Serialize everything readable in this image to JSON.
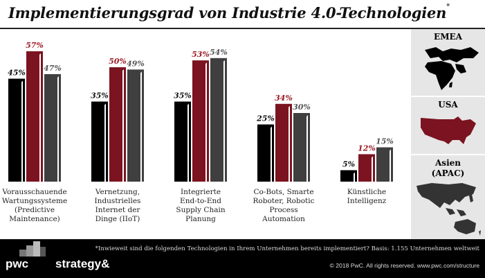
{
  "title": "Implementierungsgrad von Industrie 4.0-Technologien",
  "title_mark": "*",
  "chart_data": {
    "type": "bar",
    "categories": [
      [
        "Vorausschauende",
        "Wartungssysteme",
        "(Predictive",
        "Maintenance)"
      ],
      [
        "Vernetzung,",
        "Industrielles",
        "Internet der",
        "Dinge (IIoT)"
      ],
      [
        "Integrierte",
        "End-to-End",
        "Supply Chain",
        "Planung"
      ],
      [
        "Co-Bots, Smarte",
        "Roboter, Robotic",
        "Process",
        "Automation"
      ],
      [
        "Künstliche",
        "Intelligenz"
      ]
    ],
    "series": [
      {
        "name": "EMEA",
        "color": "#000000",
        "label_color": "#111111",
        "values": [
          45,
          35,
          35,
          25,
          5
        ]
      },
      {
        "name": "USA",
        "color": "#7b1420",
        "label_color": "#9b1b26",
        "values": [
          57,
          50,
          53,
          34,
          12
        ]
      },
      {
        "name": "Asien (APAC)",
        "color": "#3f3f3f",
        "label_color": "#555555",
        "values": [
          47,
          49,
          54,
          30,
          15
        ]
      }
    ],
    "value_suffix": "%",
    "ylim": [
      0,
      60
    ]
  },
  "regions": [
    {
      "label": [
        "EMEA"
      ],
      "color": "#000000",
      "map_color": "#000000",
      "map": "africa-europe-map"
    },
    {
      "label": [
        "USA"
      ],
      "color": "#9b1b26",
      "map_color": "#7b1420",
      "map": "usa-map"
    },
    {
      "label": [
        "Asien",
        "(APAC)"
      ],
      "color": "#222222",
      "map_color": "#333333",
      "map": "asia-pacific-map"
    }
  ],
  "footer": {
    "footnote": "*Inwieweit sind die folgenden Technologien in Ihrem Unternehmen bereits implementiert? Basis: 1.155 Unternehmen weltweit",
    "copyright": "© 2018 PwC. All rights reserved. www.pwc.com/structure",
    "logo_pwc": "pwc",
    "logo_strategy": "strategy&"
  }
}
